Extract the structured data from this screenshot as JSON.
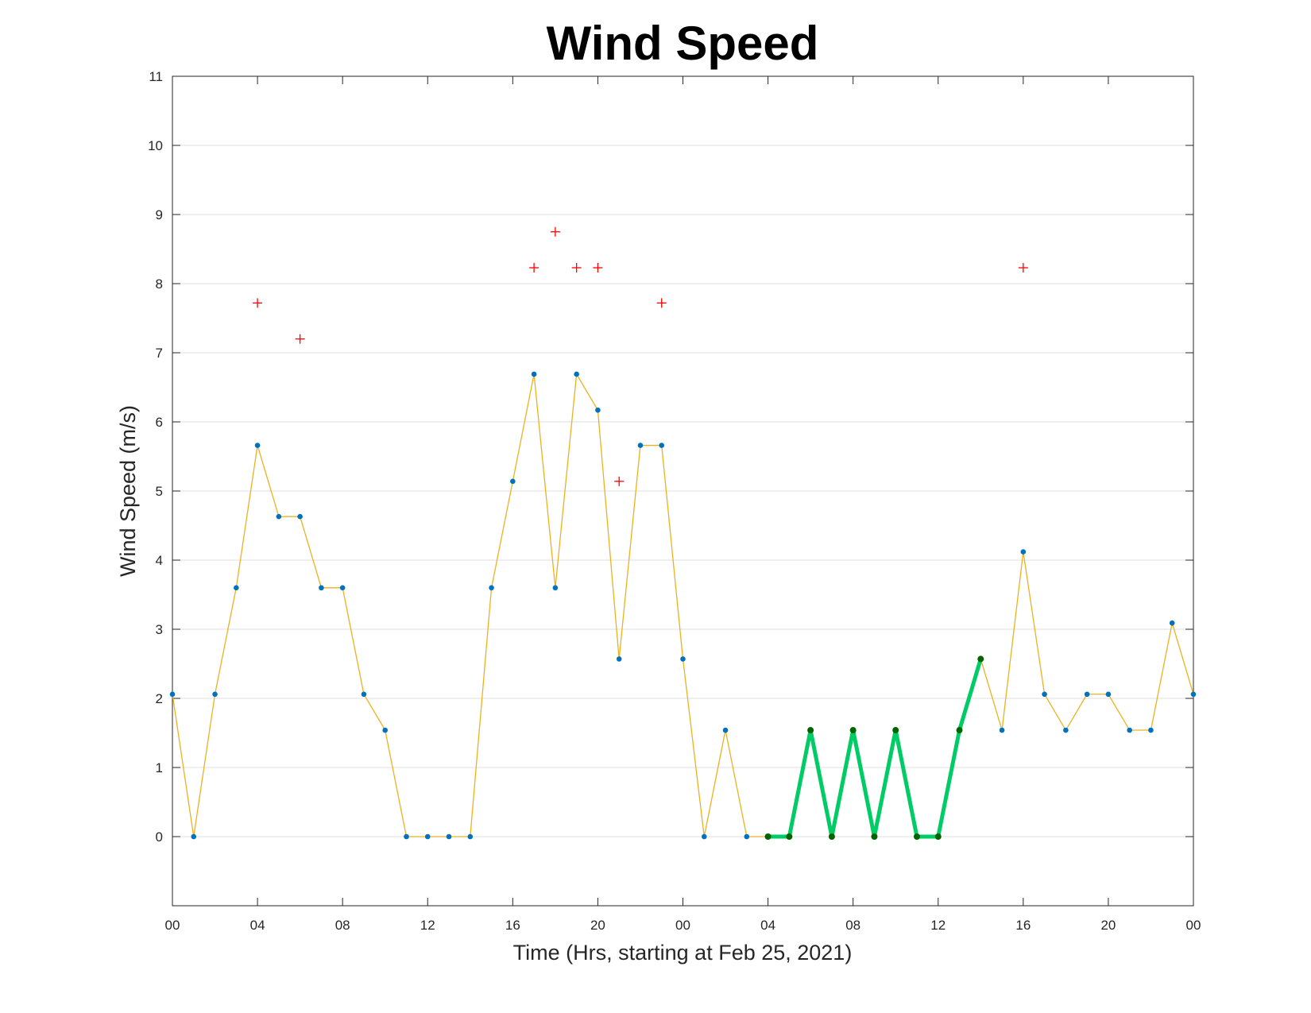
{
  "chart_data": {
    "type": "line",
    "title": "Wind Speed",
    "xlabel": "Time (Hrs, starting at Feb 25, 2021)",
    "ylabel": "Wind Speed (m/s)",
    "xlim": [
      0,
      48
    ],
    "ylim": [
      -1,
      11
    ],
    "x_ticks": [
      0,
      4,
      8,
      12,
      16,
      20,
      24,
      28,
      32,
      36,
      40,
      44,
      48
    ],
    "x_tick_labels": [
      "00",
      "04",
      "08",
      "12",
      "16",
      "20",
      "00",
      "04",
      "08",
      "12",
      "16",
      "20",
      "00"
    ],
    "y_ticks": [
      0,
      1,
      2,
      3,
      4,
      5,
      6,
      7,
      8,
      9,
      10,
      11
    ],
    "grid": "horizontal",
    "legend": "none",
    "series": [
      {
        "style": "line-markers",
        "line_color": "#EDB120",
        "marker_color": "#0072BD",
        "x": [
          0,
          1,
          2,
          3,
          4,
          5,
          6,
          7,
          8,
          9,
          10,
          11,
          12,
          13,
          14,
          15,
          16,
          17,
          18,
          19,
          20,
          21,
          22,
          23,
          24,
          25,
          26,
          27,
          28,
          29,
          30,
          31,
          32,
          33,
          34,
          35,
          36,
          37,
          38,
          39,
          40,
          41,
          42,
          43,
          44,
          45,
          46,
          47,
          48
        ],
        "values": [
          2.06,
          0,
          2.06,
          3.6,
          5.66,
          4.63,
          4.63,
          3.6,
          3.6,
          2.06,
          1.54,
          0,
          0,
          0,
          0,
          3.6,
          5.14,
          6.69,
          3.6,
          6.69,
          6.17,
          2.57,
          5.66,
          5.66,
          2.57,
          0,
          1.54,
          0,
          0,
          0,
          1.54,
          0,
          1.54,
          0,
          1.54,
          0,
          0,
          1.54,
          2.57,
          1.54,
          4.12,
          2.06,
          1.54,
          2.06,
          2.06,
          1.54,
          1.54,
          3.09,
          2.06
        ]
      },
      {
        "style": "scatter-plus",
        "color": "#FF0000",
        "x": [
          4,
          6,
          17,
          18,
          19,
          20,
          21,
          23,
          40
        ],
        "values": [
          7.72,
          7.2,
          8.23,
          8.75,
          8.23,
          8.23,
          5.14,
          7.72,
          8.23
        ]
      },
      {
        "style": "highlight-line",
        "line_color": "#00CC66",
        "marker_color": "#006400",
        "x": [
          28,
          29,
          30,
          31,
          32,
          33,
          34,
          35,
          36,
          37,
          38
        ],
        "values": [
          0,
          0,
          1.54,
          0,
          1.54,
          0,
          1.54,
          0,
          0,
          1.54,
          2.57
        ]
      }
    ]
  }
}
